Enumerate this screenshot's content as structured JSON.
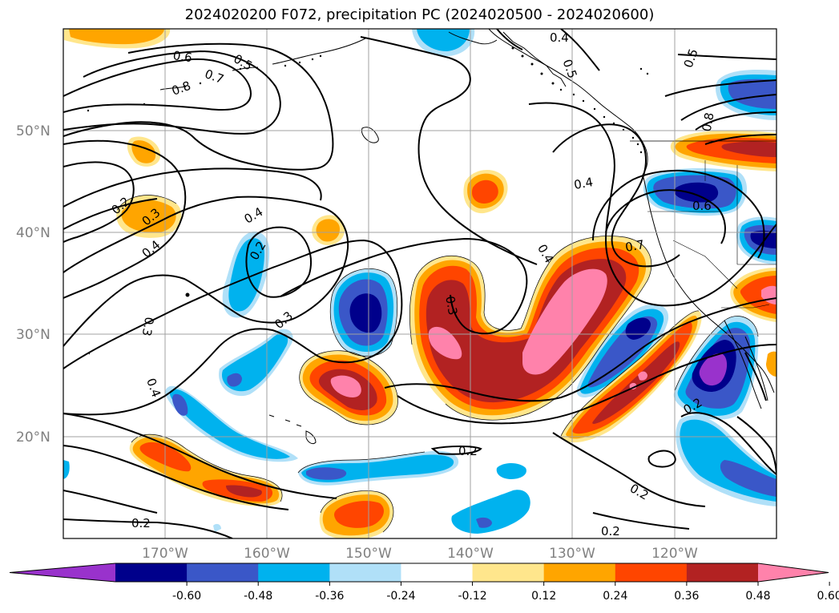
{
  "title": "2024020200 F072, precipitation PC (2024020500 - 2024020600)",
  "lat_labels": [
    "50°N",
    "40°N",
    "30°N",
    "20°N"
  ],
  "lon_labels": [
    "170°W",
    "160°W",
    "150°W",
    "140°W",
    "130°W",
    "120°W"
  ],
  "contour_labels": {
    "c06a": "0.6",
    "c07a": "0.7",
    "c08a": "0.8",
    "c05a": "0.5",
    "c04a": "0.4",
    "c05b": "0.5",
    "c02a": "0.2",
    "c03a": "0.3",
    "c04b": "0.4",
    "c04c": "0.4",
    "c02b": "0.2",
    "c03b": "0.3",
    "c03c": "0.3",
    "c04d": "0.4",
    "c03d": "0.3",
    "c04e": "0.4",
    "c04f": "0.4",
    "c07b": "0.7",
    "c06b": "0.6",
    "c05c": "0.5",
    "c08b": "0.8",
    "c02c": "0.2",
    "c02d": "0.2",
    "c02e": "0.2",
    "c02f": "0.2",
    "c02g": "0.2"
  },
  "colorbar": {
    "ticks": [
      "-0.60",
      "-0.48",
      "-0.36",
      "-0.24",
      "-0.12",
      "0.12",
      "0.24",
      "0.36",
      "0.48",
      "0.60"
    ],
    "levels": [
      -0.72,
      -0.6,
      -0.48,
      -0.36,
      -0.24,
      -0.12,
      0.12,
      0.24,
      0.36,
      0.48,
      0.6,
      0.72
    ],
    "colors": [
      "#9932cc",
      "#00008b",
      "#3a57c8",
      "#00b2ee",
      "#b0e0f8",
      "#ffffff",
      "#ffe68c",
      "#ffa500",
      "#ff4500",
      "#b22222",
      "#ff82ab"
    ]
  },
  "palette": {
    "purple": "#9932cc",
    "navy": "#00008b",
    "blue": "#3a57c8",
    "sky": "#00b2ee",
    "pale": "#b0e0f8",
    "yellow": "#ffe68c",
    "orange": "#ffa500",
    "redorange": "#ff4500",
    "darkred": "#b22222",
    "pink": "#ff82ab"
  }
}
